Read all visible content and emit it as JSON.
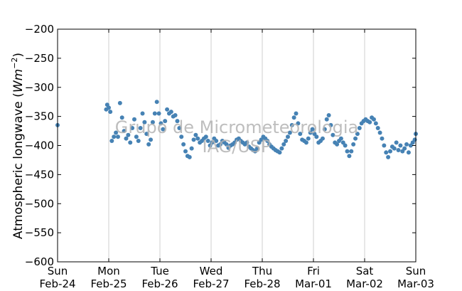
{
  "chart_data": {
    "type": "scatter",
    "ylabel": "Atmospheric longwave",
    "ylabel_unit_base": "Wm",
    "ylabel_unit_exp": "−2",
    "ylim": [
      -600,
      -200
    ],
    "yticks": [
      -200,
      -250,
      -300,
      -350,
      -400,
      -450,
      -500,
      -550,
      -600
    ],
    "ytick_labels": [
      "−200",
      "−250",
      "−300",
      "−350",
      "−400",
      "−450",
      "−500",
      "−550",
      "−600"
    ],
    "xlim": [
      "2013-02-24",
      "2013-03-03"
    ],
    "xticks": [
      {
        "day": "Sun",
        "date": "Feb-24"
      },
      {
        "day": "Mon",
        "date": "Feb-25"
      },
      {
        "day": "Tue",
        "date": "Feb-26"
      },
      {
        "day": "Wed",
        "date": "Feb-27"
      },
      {
        "day": "Thu",
        "date": "Feb-28"
      },
      {
        "day": "Fri",
        "date": "Mar-01"
      },
      {
        "day": "Sat",
        "date": "Mar-02"
      },
      {
        "day": "Sun",
        "date": "Mar-03"
      }
    ],
    "grid": "x-only",
    "marker_color": "#4682b4",
    "annotations": [
      "Grupo de Micrometeorologia",
      "IAG/USP"
    ],
    "series": [
      {
        "points": [
          [
            0.0,
            -365
          ],
          [
            0.95,
            -338
          ],
          [
            0.97,
            -330
          ],
          [
            1.0,
            -335
          ],
          [
            1.03,
            -342
          ],
          [
            1.06,
            -392
          ],
          [
            1.1,
            -385
          ],
          [
            1.14,
            -378
          ],
          [
            1.18,
            -385
          ],
          [
            1.22,
            -327
          ],
          [
            1.26,
            -352
          ],
          [
            1.3,
            -375
          ],
          [
            1.34,
            -388
          ],
          [
            1.38,
            -382
          ],
          [
            1.42,
            -395
          ],
          [
            1.46,
            -370
          ],
          [
            1.5,
            -355
          ],
          [
            1.54,
            -385
          ],
          [
            1.58,
            -392
          ],
          [
            1.62,
            -370
          ],
          [
            1.66,
            -345
          ],
          [
            1.7,
            -360
          ],
          [
            1.74,
            -380
          ],
          [
            1.78,
            -398
          ],
          [
            1.82,
            -390
          ],
          [
            1.86,
            -360
          ],
          [
            1.9,
            -345
          ],
          [
            1.94,
            -325
          ],
          [
            1.98,
            -345
          ],
          [
            2.02,
            -362
          ],
          [
            2.06,
            -372
          ],
          [
            2.1,
            -358
          ],
          [
            2.14,
            -338
          ],
          [
            2.18,
            -345
          ],
          [
            2.22,
            -342
          ],
          [
            2.26,
            -350
          ],
          [
            2.3,
            -348
          ],
          [
            2.34,
            -358
          ],
          [
            2.38,
            -370
          ],
          [
            2.42,
            -385
          ],
          [
            2.46,
            -398
          ],
          [
            2.5,
            -410
          ],
          [
            2.54,
            -418
          ],
          [
            2.58,
            -420
          ],
          [
            2.62,
            -405
          ],
          [
            2.66,
            -390
          ],
          [
            2.7,
            -382
          ],
          [
            2.74,
            -388
          ],
          [
            2.78,
            -395
          ],
          [
            2.82,
            -392
          ],
          [
            2.86,
            -388
          ],
          [
            2.9,
            -385
          ],
          [
            2.94,
            -392
          ],
          [
            2.98,
            -400
          ],
          [
            3.02,
            -395
          ],
          [
            3.06,
            -388
          ],
          [
            3.1,
            -392
          ],
          [
            3.14,
            -400
          ],
          [
            3.18,
            -398
          ],
          [
            3.22,
            -392
          ],
          [
            3.26,
            -395
          ],
          [
            3.3,
            -398
          ],
          [
            3.34,
            -404
          ],
          [
            3.38,
            -400
          ],
          [
            3.42,
            -398
          ],
          [
            3.46,
            -395
          ],
          [
            3.5,
            -390
          ],
          [
            3.54,
            -388
          ],
          [
            3.58,
            -392
          ],
          [
            3.62,
            -395
          ],
          [
            3.66,
            -398
          ],
          [
            3.7,
            -395
          ],
          [
            3.74,
            -402
          ],
          [
            3.78,
            -405
          ],
          [
            3.82,
            -408
          ],
          [
            3.86,
            -410
          ],
          [
            3.9,
            -405
          ],
          [
            3.94,
            -395
          ],
          [
            3.98,
            -390
          ],
          [
            4.02,
            -385
          ],
          [
            4.06,
            -388
          ],
          [
            4.1,
            -392
          ],
          [
            4.14,
            -398
          ],
          [
            4.18,
            -402
          ],
          [
            4.22,
            -405
          ],
          [
            4.26,
            -408
          ],
          [
            4.3,
            -410
          ],
          [
            4.34,
            -412
          ],
          [
            4.38,
            -405
          ],
          [
            4.42,
            -398
          ],
          [
            4.46,
            -392
          ],
          [
            4.5,
            -385
          ],
          [
            4.54,
            -378
          ],
          [
            4.58,
            -365
          ],
          [
            4.62,
            -352
          ],
          [
            4.66,
            -345
          ],
          [
            4.7,
            -362
          ],
          [
            4.74,
            -380
          ],
          [
            4.78,
            -390
          ],
          [
            4.82,
            -392
          ],
          [
            4.86,
            -395
          ],
          [
            4.9,
            -388
          ],
          [
            4.94,
            -378
          ],
          [
            4.98,
            -372
          ],
          [
            5.02,
            -380
          ],
          [
            5.06,
            -385
          ],
          [
            5.1,
            -395
          ],
          [
            5.14,
            -392
          ],
          [
            5.18,
            -388
          ],
          [
            5.22,
            -372
          ],
          [
            5.26,
            -355
          ],
          [
            5.3,
            -348
          ],
          [
            5.34,
            -365
          ],
          [
            5.38,
            -382
          ],
          [
            5.42,
            -395
          ],
          [
            5.46,
            -398
          ],
          [
            5.5,
            -392
          ],
          [
            5.54,
            -388
          ],
          [
            5.58,
            -395
          ],
          [
            5.62,
            -400
          ],
          [
            5.66,
            -410
          ],
          [
            5.7,
            -418
          ],
          [
            5.74,
            -410
          ],
          [
            5.78,
            -398
          ],
          [
            5.82,
            -388
          ],
          [
            5.86,
            -380
          ],
          [
            5.9,
            -370
          ],
          [
            5.94,
            -362
          ],
          [
            5.98,
            -358
          ],
          [
            6.02,
            -355
          ],
          [
            6.06,
            -358
          ],
          [
            6.1,
            -360
          ],
          [
            6.14,
            -352
          ],
          [
            6.18,
            -355
          ],
          [
            6.22,
            -362
          ],
          [
            6.26,
            -370
          ],
          [
            6.3,
            -378
          ],
          [
            6.34,
            -388
          ],
          [
            6.38,
            -400
          ],
          [
            6.42,
            -412
          ],
          [
            6.46,
            -420
          ],
          [
            6.5,
            -410
          ],
          [
            6.54,
            -402
          ],
          [
            6.58,
            -405
          ],
          [
            6.62,
            -395
          ],
          [
            6.66,
            -408
          ],
          [
            6.7,
            -400
          ],
          [
            6.74,
            -410
          ],
          [
            6.78,
            -405
          ],
          [
            6.82,
            -398
          ],
          [
            6.86,
            -412
          ],
          [
            6.9,
            -400
          ],
          [
            6.94,
            -395
          ],
          [
            6.98,
            -390
          ],
          [
            7.0,
            -380
          ]
        ]
      }
    ]
  }
}
